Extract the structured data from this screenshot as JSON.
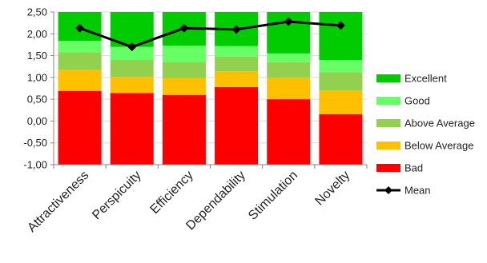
{
  "chart_data": {
    "type": "bar",
    "stacked": true,
    "categories": [
      "Attractiveness",
      "Perspicuity",
      "Efficiency",
      "Dependability",
      "Stimulation",
      "Novelty"
    ],
    "ylim": [
      -1.0,
      2.5
    ],
    "y_ticks": [
      "2,50",
      "2,00",
      "1,50",
      "1,00",
      "0,50",
      "0,00",
      "-0,50",
      "-1,00"
    ],
    "y_tick_values": [
      2.5,
      2.0,
      1.5,
      1.0,
      0.5,
      0.0,
      -0.5,
      -1.0
    ],
    "bands": [
      {
        "name": "Bad",
        "color": "#ff0000",
        "lower": [
          -1.0,
          -1.0,
          -1.0,
          -1.0,
          -1.0,
          -1.0
        ],
        "upper": [
          0.69,
          0.64,
          0.6,
          0.78,
          0.5,
          0.16
        ]
      },
      {
        "name": "Below Average",
        "color": "#ffc000",
        "lower": [
          0.69,
          0.64,
          0.6,
          0.78,
          0.5,
          0.16
        ],
        "upper": [
          1.18,
          1.01,
          0.98,
          1.14,
          1.0,
          0.7
        ]
      },
      {
        "name": "Above Average",
        "color": "#92d050",
        "lower": [
          1.18,
          1.01,
          0.98,
          1.14,
          1.0,
          0.7
        ],
        "upper": [
          1.58,
          1.4,
          1.36,
          1.48,
          1.35,
          1.12
        ]
      },
      {
        "name": "Good",
        "color": "#66ff66",
        "lower": [
          1.58,
          1.4,
          1.36,
          1.48,
          1.35,
          1.12
        ],
        "upper": [
          1.84,
          1.7,
          1.73,
          1.72,
          1.55,
          1.4
        ]
      },
      {
        "name": "Excellent",
        "color": "#00cc00",
        "lower": [
          1.84,
          1.7,
          1.73,
          1.72,
          1.55,
          1.4
        ],
        "upper": [
          2.5,
          2.5,
          2.5,
          2.5,
          2.5,
          2.5
        ]
      }
    ],
    "series": [
      {
        "name": "Mean",
        "type": "line",
        "color": "#000000",
        "marker": "diamond",
        "values": [
          2.13,
          1.7,
          2.13,
          2.1,
          2.28,
          2.19
        ]
      }
    ],
    "legend": {
      "placement": "right",
      "entries": [
        "Excellent",
        "Good",
        "Above Average",
        "Below Average",
        "Bad",
        "Mean"
      ]
    },
    "grid": true,
    "title": "",
    "xlabel": "",
    "ylabel": ""
  }
}
